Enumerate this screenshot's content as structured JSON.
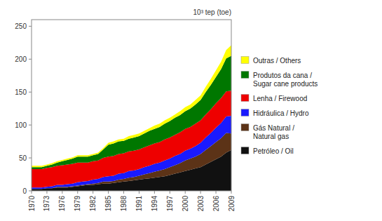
{
  "chart_data": {
    "type": "area",
    "stacked": true,
    "ylabel": "10³ tep (toe)",
    "x": [
      1970,
      1971,
      1972,
      1973,
      1974,
      1975,
      1976,
      1977,
      1978,
      1979,
      1980,
      1981,
      1982,
      1983,
      1984,
      1985,
      1986,
      1987,
      1988,
      1989,
      1990,
      1991,
      1992,
      1993,
      1994,
      1995,
      1996,
      1997,
      1998,
      1999,
      2000,
      2001,
      2002,
      2003,
      2004,
      2005,
      2006,
      2007,
      2008,
      2009
    ],
    "series": [
      {
        "name": "Petróleo / Oil",
        "color": "#111111",
        "values": [
          3,
          3,
          3,
          4,
          4,
          5,
          5,
          5,
          6,
          7,
          8,
          9,
          9,
          10,
          11,
          11,
          12,
          13,
          14,
          15,
          16,
          17,
          18,
          19,
          20,
          21,
          22,
          24,
          26,
          28,
          30,
          32,
          34,
          36,
          40,
          44,
          48,
          52,
          58,
          62
        ]
      },
      {
        "name": "Gás Natural /\nNatural gas",
        "color": "#5c3317",
        "values": [
          0,
          0,
          0,
          0,
          0,
          1,
          1,
          1,
          1,
          1,
          1,
          1,
          2,
          2,
          3,
          3,
          3,
          4,
          4,
          5,
          5,
          6,
          7,
          8,
          9,
          10,
          11,
          12,
          13,
          14,
          16,
          17,
          18,
          20,
          22,
          24,
          26,
          28,
          30,
          25
        ]
      },
      {
        "name": "Hidráulica / Hydro",
        "color": "#1a1aff",
        "values": [
          2,
          2,
          2,
          2,
          3,
          3,
          3,
          4,
          4,
          5,
          5,
          5,
          6,
          6,
          7,
          8,
          8,
          9,
          9,
          10,
          10,
          10,
          11,
          11,
          12,
          12,
          13,
          13,
          14,
          14,
          15,
          15,
          16,
          17,
          19,
          20,
          22,
          23,
          25,
          27
        ]
      },
      {
        "name": "Lenha / Firewood",
        "color": "#ee0000",
        "values": [
          28,
          28,
          28,
          29,
          29,
          29,
          30,
          30,
          30,
          30,
          29,
          28,
          28,
          28,
          29,
          30,
          30,
          30,
          30,
          30,
          30,
          30,
          30,
          31,
          31,
          31,
          32,
          32,
          32,
          33,
          33,
          33,
          34,
          34,
          35,
          36,
          37,
          38,
          38,
          38
        ]
      },
      {
        "name": "Produtos da cana /\nSugar cane products",
        "color": "#007700",
        "values": [
          3,
          3,
          3,
          3,
          4,
          5,
          6,
          7,
          8,
          9,
          9,
          9,
          9,
          10,
          13,
          18,
          19,
          19,
          19,
          19,
          20,
          20,
          21,
          22,
          22,
          23,
          24,
          25,
          26,
          26,
          27,
          28,
          29,
          31,
          34,
          37,
          40,
          44,
          50,
          53
        ]
      },
      {
        "name": "Outras / Others",
        "color": "#ffff00",
        "values": [
          2,
          2,
          2,
          2,
          2,
          2,
          2,
          2,
          2,
          2,
          2,
          2,
          2,
          2,
          2,
          3,
          3,
          3,
          3,
          4,
          4,
          4,
          4,
          4,
          5,
          5,
          5,
          5,
          5,
          6,
          6,
          6,
          7,
          7,
          8,
          9,
          10,
          11,
          13,
          16
        ]
      }
    ],
    "xlim": [
      1970,
      2009
    ],
    "xticks": [
      1970,
      1973,
      1976,
      1979,
      1982,
      1985,
      1988,
      1991,
      1994,
      1997,
      2000,
      2003,
      2006,
      2009
    ],
    "ylim": [
      0,
      260
    ],
    "yticks": [
      0,
      50,
      100,
      150,
      200,
      250
    ],
    "grid": false,
    "legend": "right"
  }
}
